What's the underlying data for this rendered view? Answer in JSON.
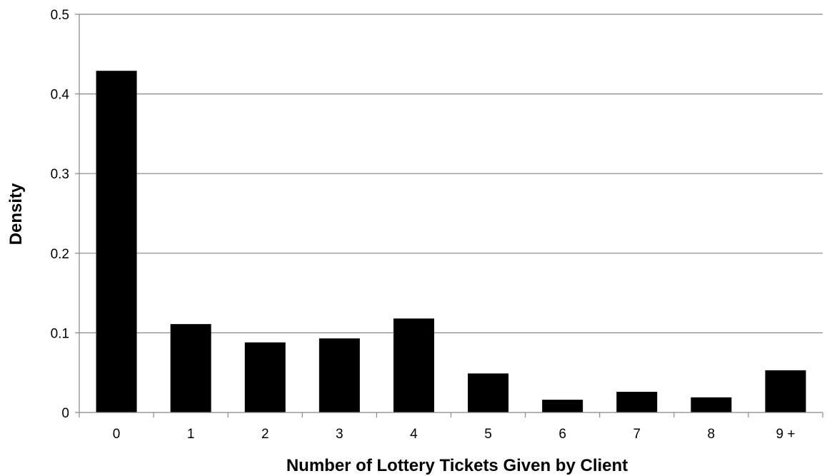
{
  "chart_data": {
    "type": "bar",
    "title": "",
    "xlabel": "Number of Lottery Tickets Given by Client",
    "ylabel": "Density",
    "categories": [
      "0",
      "1",
      "2",
      "3",
      "4",
      "5",
      "6",
      "7",
      "8",
      "9 +"
    ],
    "values": [
      0.429,
      0.111,
      0.088,
      0.093,
      0.118,
      0.049,
      0.016,
      0.026,
      0.019,
      0.053
    ],
    "ylim": [
      0,
      0.5
    ],
    "yticks": [
      0,
      0.1,
      0.2,
      0.3,
      0.4,
      0.5
    ],
    "ytick_labels": [
      "0",
      "0.1",
      "0.2",
      "0.3",
      "0.4",
      "0.5"
    ],
    "grid": true,
    "legend": "none",
    "bar_color": "#000000",
    "grid_color": "#888888"
  }
}
